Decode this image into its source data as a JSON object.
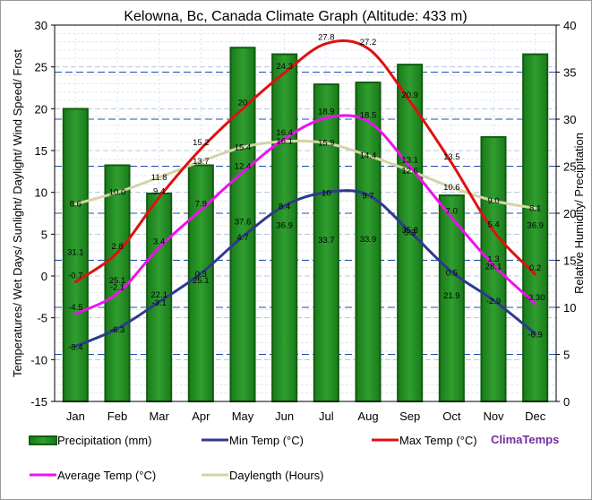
{
  "chart_data": {
    "type": "bar+line",
    "title": "Kelowna, Bc, Canada Climate Graph (Altitude: 433 m)",
    "categories": [
      "Jan",
      "Feb",
      "Mar",
      "Apr",
      "May",
      "Jun",
      "Jul",
      "Aug",
      "Sep",
      "Oct",
      "Nov",
      "Dec"
    ],
    "y_left": {
      "label": "Temperatures/ Wet Days/ Sunlight/ Daylight/ Wind Speed/ Frost",
      "range": [
        -15,
        30
      ],
      "ticks": [
        -15,
        -10,
        -5,
        0,
        5,
        10,
        15,
        20,
        25,
        30
      ]
    },
    "y_right": {
      "label": "Relative Humidity/ Precipitation",
      "range": [
        0,
        40
      ],
      "ticks": [
        0,
        5,
        10,
        15,
        20,
        25,
        30,
        35,
        40
      ]
    },
    "series": [
      {
        "name": "Precipitation (mm)",
        "kind": "bar",
        "axis": "right",
        "color": "#1e8c1e",
        "values": [
          31.1,
          25.1,
          22.1,
          25.1,
          37.6,
          36.9,
          33.7,
          33.9,
          35.8,
          21.9,
          28.1,
          36.9
        ],
        "labels": [
          "31.1",
          "25.1",
          "22.1",
          "25.1",
          "37.6",
          "36.9",
          "33.7",
          "33.9",
          "35.8",
          "21.9",
          "28.1",
          "36.9"
        ]
      },
      {
        "name": "Min Temp (°C)",
        "kind": "line",
        "axis": "left",
        "color": "#2e3a8c",
        "values": [
          -8.4,
          -6.3,
          -3.1,
          0.3,
          4.7,
          8.4,
          10,
          9.7,
          5.3,
          0.5,
          -2.9,
          -6.9
        ],
        "labels": [
          "-8.4",
          "-6.3",
          "-3.1",
          "0.3",
          "4.7",
          "8.4",
          "10",
          "9.7",
          "5.3",
          "0.5",
          "-2.9",
          "-6.9"
        ]
      },
      {
        "name": "Max Temp (°C)",
        "kind": "line",
        "axis": "left",
        "color": "#e01010",
        "values": [
          -0.7,
          2.8,
          9.4,
          15.2,
          20,
          24.3,
          27.8,
          27.2,
          20.9,
          13.5,
          5.4,
          0.2
        ],
        "labels": [
          "-0.7",
          "2.8",
          "9.4",
          "15.2",
          "20",
          "24.3",
          "27.8",
          "27.2",
          "20.9",
          "13.5",
          "5.4",
          "0.2"
        ]
      },
      {
        "name": "Average Temp (°C)",
        "kind": "line",
        "axis": "left",
        "color": "#ee10ee",
        "values": [
          -4.5,
          -2.1,
          3.4,
          7.9,
          12.4,
          16.4,
          18.9,
          18.5,
          13.1,
          7,
          1.3,
          -3.3
        ],
        "labels": [
          "-4.5",
          "-2.1",
          "3.4",
          "7.9",
          "12.4",
          "16.4",
          "18.9",
          "18.5",
          "13.1",
          "7.0",
          "1.3",
          "-3.30"
        ]
      },
      {
        "name": "Daylength (Hours)",
        "kind": "line",
        "axis": "left",
        "color": "#d4d4a6",
        "values": [
          8.6,
          10,
          11.8,
          13.7,
          15.4,
          16.1,
          15.9,
          14.4,
          12.6,
          10.6,
          9,
          8.1
        ],
        "labels": [
          "8.6",
          "10.0",
          "11.8",
          "13.7",
          "15.4",
          "16.1",
          "15.9",
          "14.4",
          "12.6",
          "10.6",
          "9.0",
          "8.1"
        ]
      }
    ],
    "legend": [
      "Precipitation (mm)",
      "Min Temp (°C)",
      "Max Temp (°C)",
      "Average Temp (°C)",
      "Daylength (Hours)"
    ],
    "legend_position": "bottom",
    "brand": "ClimaTemps",
    "grid": true
  }
}
